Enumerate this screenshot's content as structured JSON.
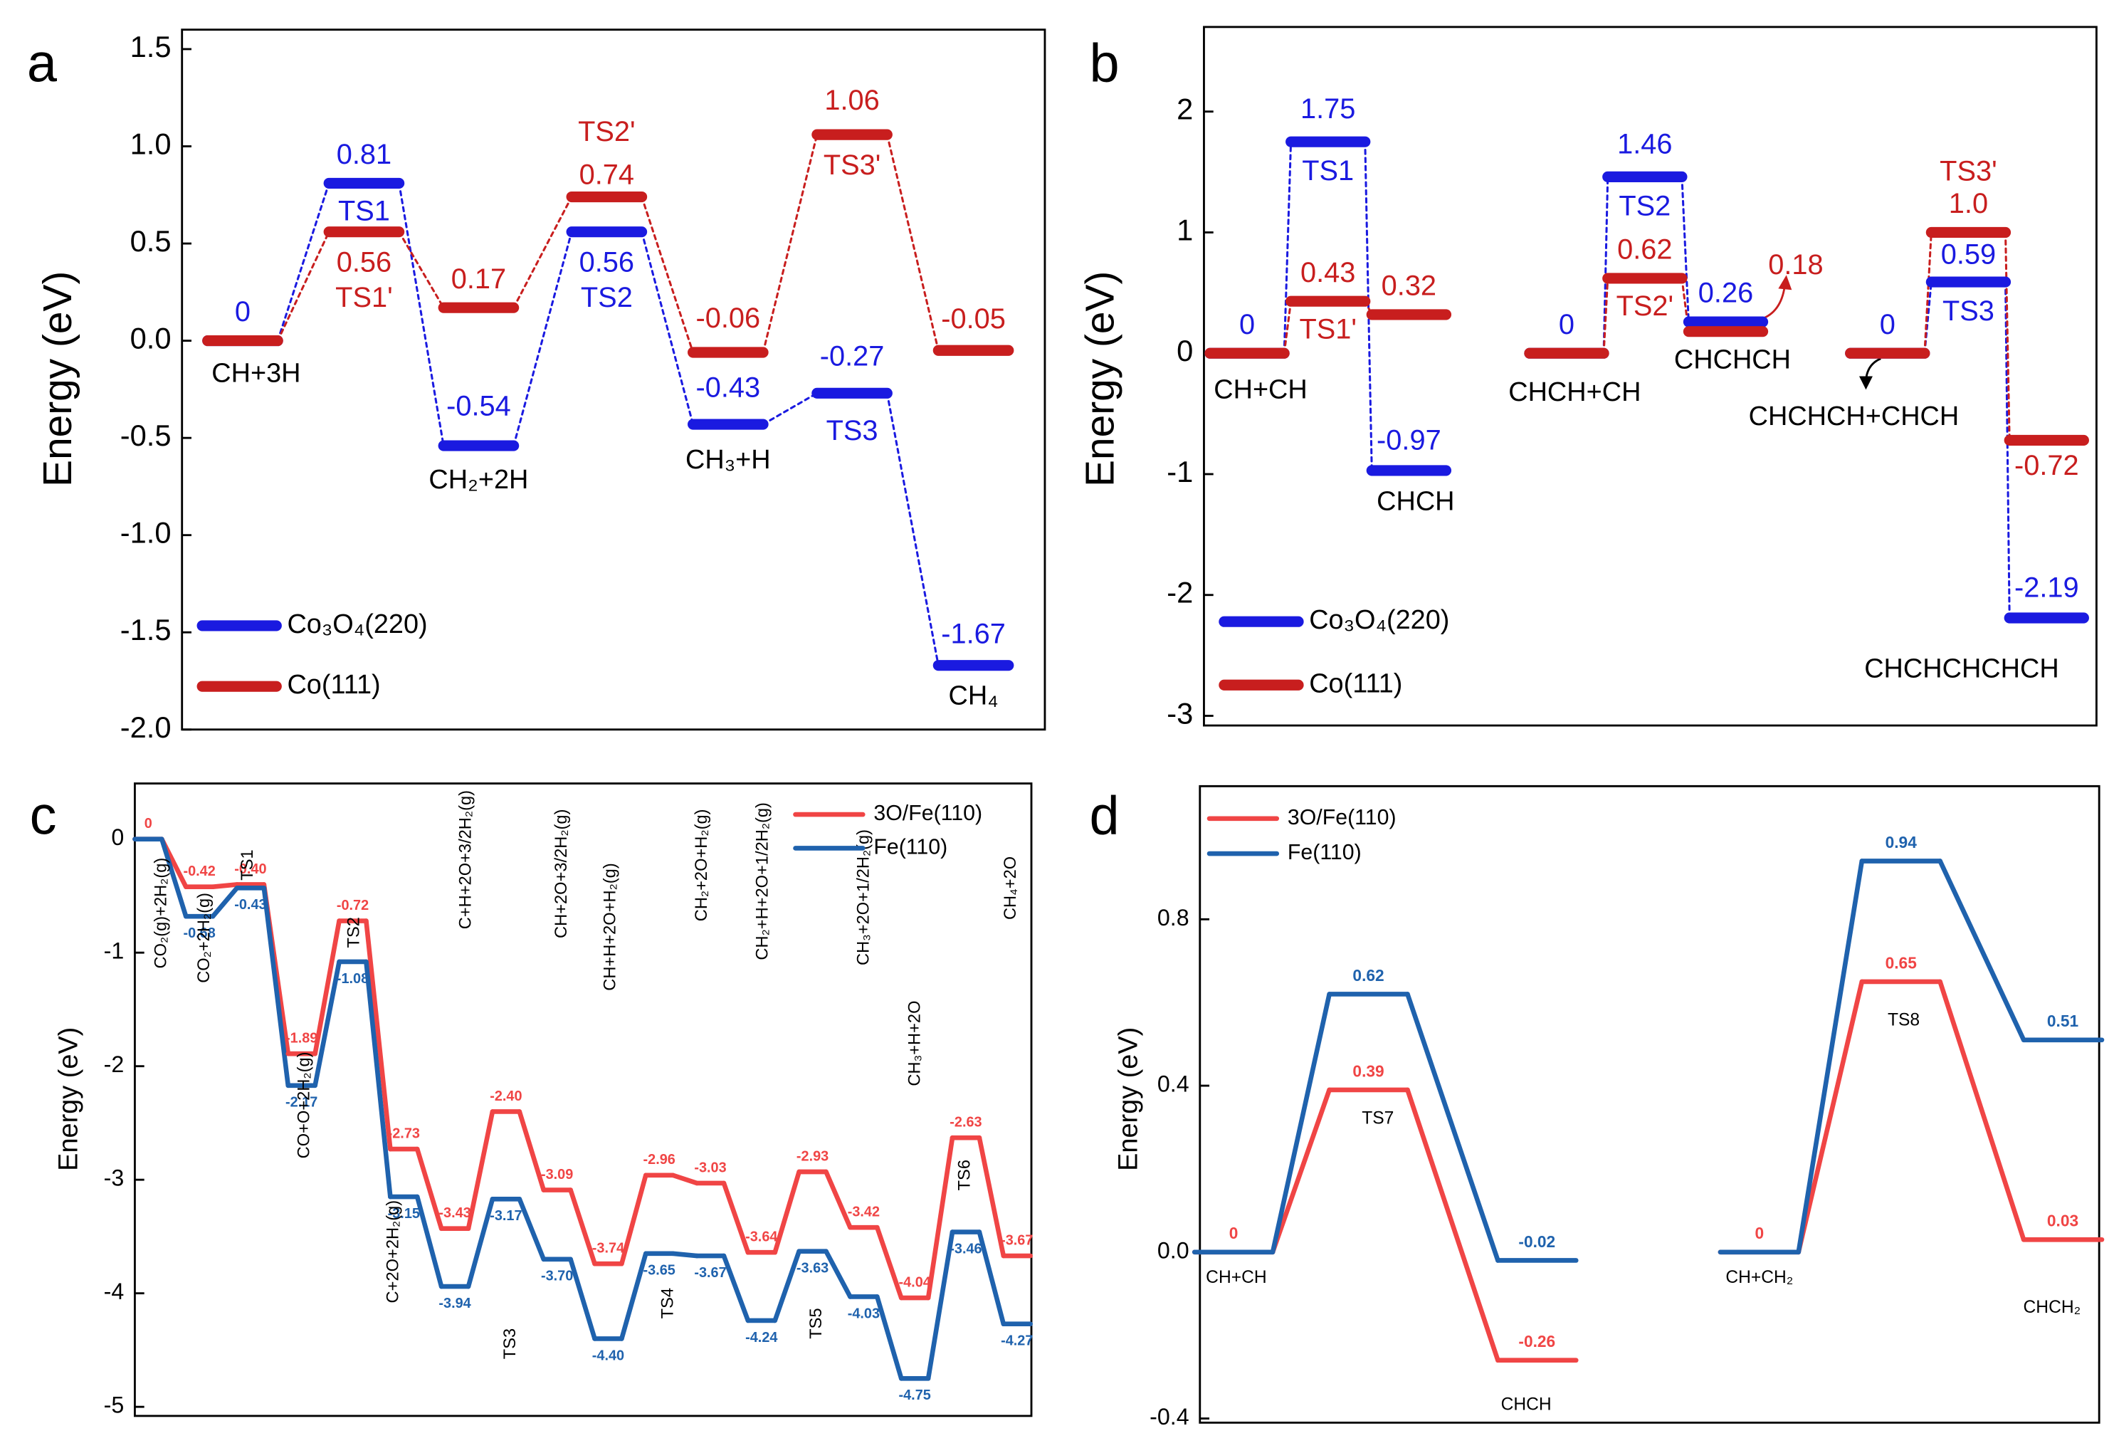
{
  "chart_data": [
    {
      "panel": "a",
      "type": "energy_diagram",
      "line_style": "dashed",
      "ylabel": "Energy (eV)",
      "legend": "lower left",
      "ylim": [
        -2.0,
        1.6
      ],
      "yticks": [
        1.5,
        {
          "value": 1,
          "label": "1.0"
        },
        0.5,
        {
          "value": 0,
          "label": "0.0"
        },
        -0.5,
        {
          "value": -1,
          "label": "-1.0"
        },
        -1.5,
        {
          "value": -2,
          "label": "-2.0"
        }
      ],
      "categories": [
        "CH+3H",
        null,
        "CH₂+2H",
        null,
        "CH₃+H",
        null,
        "CH₄"
      ],
      "series": [
        {
          "name": "Co₃O₄(220)",
          "color": "#1a1ae0",
          "values": [
            0,
            0.81,
            -0.54,
            0.56,
            -0.43,
            -0.27,
            -1.67
          ],
          "ts_labels": [
            null,
            "TS1",
            null,
            "TS2",
            null,
            "TS3",
            null
          ]
        },
        {
          "name": "Co(111)",
          "color": "#c81e1e",
          "values": [
            0,
            0.56,
            0.17,
            0.74,
            -0.06,
            1.06,
            -0.05
          ],
          "ts_labels": [
            null,
            "TS1'",
            null,
            "TS2'",
            null,
            "TS3'",
            null
          ]
        }
      ]
    },
    {
      "panel": "b",
      "type": "energy_diagram",
      "line_style": "dashed",
      "ylabel": "Energy (eV)",
      "legend": "lower left",
      "ylim": [
        -3.08,
        2.7
      ],
      "yticks": [
        2,
        1,
        0,
        -1,
        -2,
        -3
      ],
      "categories": [
        "CH+CH",
        null,
        "CHCH",
        null,
        "CHCH+CH",
        null,
        "CHCHCH",
        null,
        "CHCHCH+CHCH",
        null,
        "CHCHCHCHCH"
      ],
      "series": [
        {
          "name": "Co₃O₄(220)",
          "color": "#1a1ae0",
          "values": [
            0,
            1.75,
            -0.97,
            null,
            0,
            1.46,
            0.26,
            null,
            0,
            0.59,
            -2.19
          ],
          "ts_labels": [
            null,
            "TS1",
            null,
            null,
            null,
            "TS2",
            null,
            null,
            null,
            "TS3",
            null
          ]
        },
        {
          "name": "Co(111)",
          "color": "#c81e1e",
          "values": [
            0,
            0.43,
            0.32,
            null,
            0,
            0.62,
            0.18,
            null,
            0,
            1.0,
            -0.72
          ],
          "value_labels": [
            null,
            "0.43",
            "0.32",
            null,
            null,
            "0.62",
            "0.18",
            null,
            null,
            "1.0",
            "-0.72"
          ],
          "ts_labels": [
            null,
            "TS1'",
            null,
            null,
            null,
            "TS2'",
            null,
            null,
            null,
            "TS3'",
            null
          ]
        }
      ]
    },
    {
      "panel": "c",
      "type": "energy_diagram",
      "line_style": "solid",
      "ylabel": "Energy (eV)",
      "legend": "upper right",
      "ylim": [
        -5.08,
        0.49
      ],
      "yticks": [
        0,
        -1,
        -2,
        -3,
        -4,
        -5
      ],
      "categories": [
        "CO₂(g)+2H₂(g)",
        "CO₂+2H₂(g)",
        "TS1",
        "CO+O+2H₂(g)",
        "TS2",
        "C+2O+2H₂(g)",
        "C+H+2O+3/2H₂(g)",
        "TS3",
        "CH+2O+3/2H₂(g)",
        "CH+H+2O+H₂(g)",
        "TS4",
        "CH₂+2O+H₂(g)",
        "CH₂+H+2O+1/2H₂(g)",
        "TS5",
        "CH₃+2O+1/2H₂(g)",
        "CH₃+H+2O",
        "TS6",
        "CH₄+2O"
      ],
      "series": [
        {
          "name": "3O/Fe(110)",
          "color": "#f04545",
          "values": [
            0,
            -0.42,
            -0.4,
            -1.89,
            -0.72,
            -2.73,
            -3.43,
            -2.4,
            -3.09,
            -3.74,
            -2.96,
            -3.03,
            -3.64,
            -2.93,
            -3.42,
            -4.04,
            -2.63,
            -3.67
          ],
          "value_labels": [
            "0",
            "-0.42",
            "-0.40",
            "-1.89",
            "-0.72",
            "-2.73",
            "-3.43",
            "-2.40",
            "-3.09",
            "-3.74",
            "-2.96",
            "-3.03",
            "-3.64",
            "-2.93",
            "-3.42",
            "-4.04",
            "-2.63",
            "-3.67"
          ]
        },
        {
          "name": "Fe(110)",
          "color": "#1f62ad",
          "values": [
            0,
            -0.68,
            -0.43,
            -2.17,
            -1.08,
            -3.15,
            -3.94,
            -3.17,
            -3.7,
            -4.4,
            -3.65,
            -3.67,
            -4.24,
            -3.63,
            -4.03,
            -4.75,
            -3.46,
            -4.27
          ],
          "value_labels": [
            null,
            "-0.68",
            "-0.43",
            "-2.17",
            "-1.08",
            "-3.15",
            "-3.94",
            "-3.17",
            "-3.70",
            "-4.40",
            "-3.65",
            "-3.67",
            "-4.24",
            "-3.63",
            "-4.03",
            "-4.75",
            "-3.46",
            "-4.27"
          ]
        }
      ]
    },
    {
      "panel": "d",
      "type": "energy_diagram",
      "line_style": "solid",
      "ylabel": "Energy (eV)",
      "legend": "upper left",
      "ylim": [
        -0.41,
        1.12
      ],
      "yticks": [
        -0.4,
        {
          "value": 0,
          "label": "0.0"
        },
        0.4,
        0.8
      ],
      "categories": [
        "CH+CH",
        "TS7",
        "CHCH",
        null,
        "CH+CH₂",
        "TS8",
        "CHCH₂"
      ],
      "series": [
        {
          "name": "3O/Fe(110)",
          "color": "#f04545",
          "values": [
            0,
            0.39,
            -0.26,
            null,
            0,
            0.65,
            0.03
          ],
          "value_labels": [
            "0",
            "0.39",
            "-0.26",
            null,
            "0",
            "0.65",
            "0.03"
          ]
        },
        {
          "name": "Fe(110)",
          "color": "#1f62ad",
          "values": [
            0,
            0.62,
            -0.02,
            null,
            0,
            0.94,
            0.51
          ],
          "value_labels": [
            null,
            "0.62",
            "-0.02",
            null,
            null,
            "0.94",
            "0.51"
          ]
        }
      ]
    }
  ]
}
